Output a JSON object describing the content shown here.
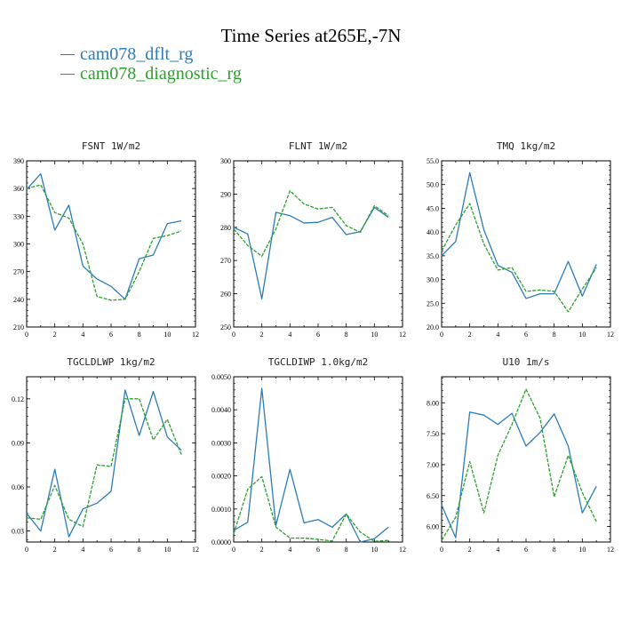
{
  "title": "Time Series at265E,-7N",
  "legend": [
    {
      "name": "cam078_dflt_rg",
      "color": "#2b7bb9"
    },
    {
      "name": "cam078_diagnostic_rg",
      "color": "#2ca02c"
    }
  ],
  "chart_data": [
    {
      "type": "line",
      "title": "FSNT   1W/m2",
      "x": [
        0,
        1,
        2,
        3,
        4,
        5,
        6,
        7,
        8,
        9,
        10,
        11
      ],
      "xlim": [
        0,
        12
      ],
      "xticks": [
        "0",
        "2",
        "4",
        "6",
        "8",
        "10",
        "12"
      ],
      "ylim": [
        210,
        390
      ],
      "yticks": [
        "210",
        "240",
        "270",
        "300",
        "330",
        "360",
        "390"
      ],
      "series": [
        {
          "name": "cam078_dflt_rg",
          "values": [
            359,
            376,
            315,
            342,
            276,
            262,
            254,
            240,
            284,
            288,
            322,
            325
          ]
        },
        {
          "name": "cam078_diagnostic_rg",
          "values": [
            360,
            364,
            334,
            328,
            300,
            243,
            239,
            240,
            270,
            306,
            309,
            314
          ]
        }
      ]
    },
    {
      "type": "line",
      "title": "FLNT   1W/m2",
      "x": [
        0,
        1,
        2,
        3,
        4,
        5,
        6,
        7,
        8,
        9,
        10,
        11
      ],
      "xlim": [
        0,
        12
      ],
      "xticks": [
        "0",
        "2",
        "4",
        "6",
        "8",
        "10",
        "12"
      ],
      "ylim": [
        250,
        300
      ],
      "yticks": [
        "250",
        "260",
        "270",
        "280",
        "290",
        "300"
      ],
      "series": [
        {
          "name": "cam078_dflt_rg",
          "values": [
            280,
            278,
            258.5,
            284.5,
            283.5,
            281.3,
            281.5,
            283,
            277.8,
            278.7,
            286,
            283
          ]
        },
        {
          "name": "cam078_diagnostic_rg",
          "values": [
            279.5,
            274.5,
            271.3,
            279.5,
            291,
            287,
            285.5,
            286,
            280.5,
            278.5,
            286.5,
            283.5
          ]
        }
      ]
    },
    {
      "type": "line",
      "title": "TMQ   1kg/m2",
      "x": [
        0,
        1,
        2,
        3,
        4,
        5,
        6,
        7,
        8,
        9,
        10,
        11
      ],
      "xlim": [
        0,
        12
      ],
      "xticks": [
        "0",
        "2",
        "4",
        "6",
        "8",
        "10",
        "12"
      ],
      "ylim": [
        20,
        55
      ],
      "yticks": [
        "20.0",
        "25.0",
        "30.0",
        "35.0",
        "40.0",
        "45.0",
        "50.0",
        "55.0"
      ],
      "series": [
        {
          "name": "cam078_dflt_rg",
          "values": [
            35,
            38,
            52.5,
            40.5,
            33,
            31.5,
            26,
            27,
            27,
            33.8,
            26.5,
            33.2
          ]
        },
        {
          "name": "cam078_diagnostic_rg",
          "values": [
            36,
            41.5,
            46,
            37.5,
            32,
            32.5,
            27.5,
            27.8,
            27.5,
            23.2,
            28,
            32.5
          ]
        }
      ]
    },
    {
      "type": "line",
      "title": "TGCLDLWP   1kg/m2",
      "x": [
        0,
        1,
        2,
        3,
        4,
        5,
        6,
        7,
        8,
        9,
        10,
        11
      ],
      "xlim": [
        0,
        12
      ],
      "xticks": [
        "0",
        "2",
        "4",
        "6",
        "8",
        "10",
        "12"
      ],
      "ylim": [
        0.0225,
        0.135
      ],
      "yticks": [
        "0.03",
        "0.06",
        "0.09",
        "0.12"
      ],
      "series": [
        {
          "name": "cam078_dflt_rg",
          "values": [
            0.042,
            0.03,
            0.072,
            0.026,
            0.045,
            0.049,
            0.057,
            0.126,
            0.095,
            0.125,
            0.094,
            0.085
          ]
        },
        {
          "name": "cam078_diagnostic_rg",
          "values": [
            0.039,
            0.038,
            0.061,
            0.038,
            0.033,
            0.075,
            0.074,
            0.12,
            0.12,
            0.092,
            0.106,
            0.082
          ]
        }
      ]
    },
    {
      "type": "line",
      "title": "TGCLDIWP   1.0kg/m2",
      "x": [
        0,
        1,
        2,
        3,
        4,
        5,
        6,
        7,
        8,
        9,
        10,
        11
      ],
      "xlim": [
        0,
        12
      ],
      "xticks": [
        "0",
        "2",
        "4",
        "6",
        "8",
        "10",
        "12"
      ],
      "ylim": [
        0,
        0.005
      ],
      "yticks": [
        "0.0000",
        "0.0010",
        "0.0020",
        "0.0030",
        "0.0040",
        "0.0050"
      ],
      "series": [
        {
          "name": "cam078_dflt_rg",
          "values": [
            0.00035,
            0.0006,
            0.00465,
            0.0005,
            0.0022,
            0.00058,
            0.00068,
            0.00045,
            0.00085,
            0.0,
            0.0001,
            0.00045
          ]
        },
        {
          "name": "cam078_diagnostic_rg",
          "values": [
            0.00025,
            0.0016,
            0.00198,
            0.00045,
            0.00012,
            0.00012,
            8e-05,
            3e-05,
            0.00085,
            0.0003,
            2e-05,
            5e-05
          ]
        }
      ]
    },
    {
      "type": "line",
      "title": "U10   1m/s",
      "x": [
        0,
        1,
        2,
        3,
        4,
        5,
        6,
        7,
        8,
        9,
        10,
        11
      ],
      "xlim": [
        0,
        12
      ],
      "xticks": [
        "0",
        "2",
        "4",
        "6",
        "8",
        "10",
        "12"
      ],
      "ylim": [
        5.75,
        8.42
      ],
      "yticks": [
        "6.00",
        "6.50",
        "7.00",
        "7.50",
        "8.00"
      ],
      "series": [
        {
          "name": "cam078_dflt_rg",
          "values": [
            6.35,
            5.82,
            7.85,
            7.8,
            7.65,
            7.83,
            7.3,
            7.52,
            7.82,
            7.3,
            6.22,
            6.65
          ]
        },
        {
          "name": "cam078_diagnostic_rg",
          "values": [
            5.78,
            6.15,
            7.05,
            6.22,
            7.15,
            7.65,
            8.22,
            7.75,
            6.48,
            7.15,
            6.55,
            6.08
          ]
        }
      ]
    }
  ]
}
